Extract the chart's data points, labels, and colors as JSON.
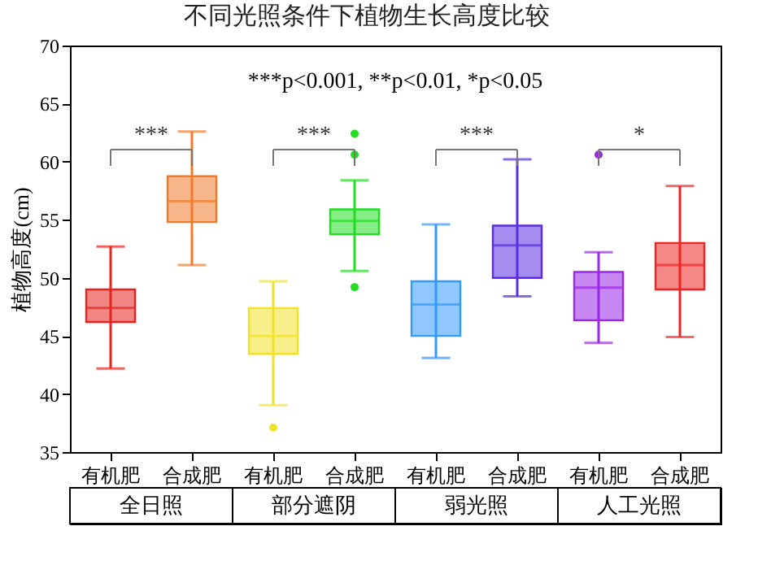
{
  "chart_data": {
    "type": "box",
    "title": "不同光照条件下植物生长高度比较",
    "ylabel": "植物高度(cm)",
    "categories": [
      "有机肥",
      "合成肥",
      "有机肥",
      "合成肥",
      "有机肥",
      "合成肥",
      "有机肥",
      "合成肥"
    ],
    "colors": [
      "#e8231f",
      "#f07a2a",
      "#f2e12a",
      "#22dd22",
      "#3399ff",
      "#5a2ee0",
      "#9b27e8",
      "#ec2525"
    ],
    "boxes": [
      {
        "low": 42.2,
        "q1": 46.2,
        "median": 47.4,
        "q3": 49.0,
        "high": 52.7
      },
      {
        "low": 51.1,
        "q1": 54.8,
        "median": 56.6,
        "q3": 58.75,
        "high": 62.6
      },
      {
        "low": 39.05,
        "q1": 43.45,
        "median": 45.0,
        "q3": 47.4,
        "high": 49.7,
        "outliers": [
          37.1
        ]
      },
      {
        "low": 50.6,
        "q1": 53.75,
        "median": 54.9,
        "q3": 55.9,
        "high": 58.4,
        "outliers": [
          49.2,
          60.6,
          62.4
        ]
      },
      {
        "low": 43.1,
        "q1": 45.0,
        "median": 47.7,
        "q3": 49.7,
        "high": 54.6
      },
      {
        "low": 48.4,
        "q1": 50.0,
        "median": 52.8,
        "q3": 54.5,
        "high": 60.2
      },
      {
        "low": 44.4,
        "q1": 46.35,
        "median": 49.15,
        "q3": 50.5,
        "high": 52.2,
        "outliers": [
          60.6
        ]
      },
      {
        "low": 44.9,
        "q1": 49.0,
        "median": 51.1,
        "q3": 53.0,
        "high": 57.9
      }
    ],
    "ylim": [
      35,
      70
    ],
    "yticks": [
      35,
      40,
      45,
      50,
      55,
      60,
      65,
      70
    ],
    "annotations": [
      "***p<0.001,    **p<0.01,    *p<0.05",
      "***",
      "***",
      "***",
      "*",
      "全日照",
      "部分遮阴",
      "弱光照",
      "人工光照"
    ]
  }
}
